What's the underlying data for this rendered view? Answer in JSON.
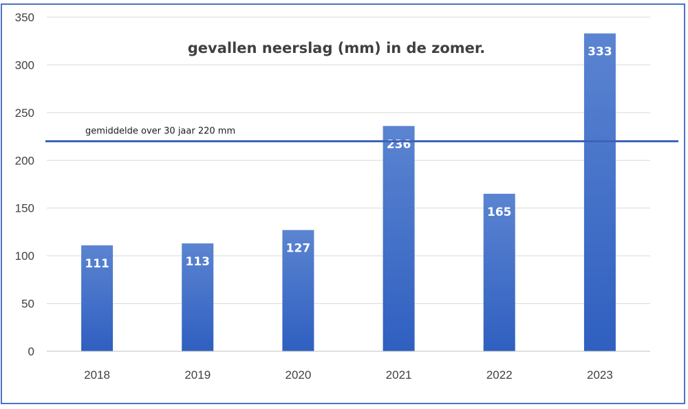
{
  "chart_data": {
    "type": "bar",
    "title": "gevallen neerslag (mm) in de zomer.",
    "categories": [
      "2018",
      "2019",
      "2020",
      "2021",
      "2022",
      "2023"
    ],
    "values": [
      111,
      113,
      127,
      236,
      165,
      333
    ],
    "ylim": [
      0,
      350
    ],
    "yticks": [
      0,
      50,
      100,
      150,
      200,
      250,
      300,
      350
    ],
    "grid": true,
    "data_labels": true,
    "reference_line": {
      "value": 220,
      "label": "gemiddelde over 30 jaar 220 mm"
    },
    "colors": {
      "bar_top": "#5b84d1",
      "bar_bottom": "#2f5fc0",
      "reference_line": "#3d63b8",
      "frame": "#4a72c4",
      "grid": "#d9d9d9"
    }
  }
}
